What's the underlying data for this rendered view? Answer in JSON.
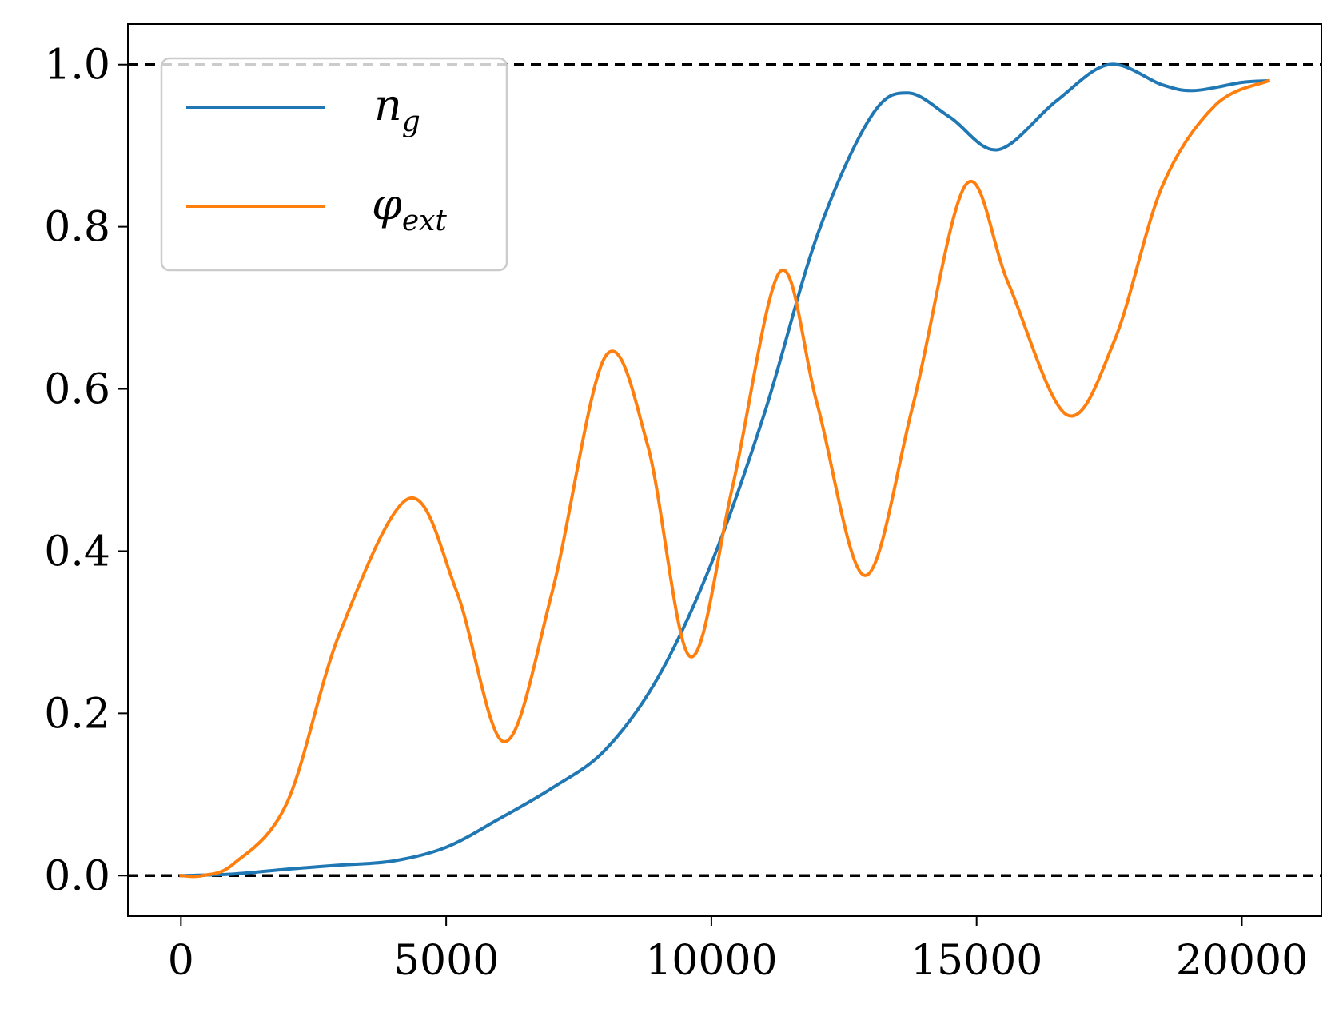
{
  "chart_data": {
    "type": "line",
    "title": "",
    "xlabel": "",
    "ylabel": "",
    "xlim": [
      -1000,
      21500
    ],
    "ylim": [
      -0.05,
      1.05
    ],
    "x_ticks": [
      0,
      5000,
      10000,
      15000,
      20000
    ],
    "x_tick_labels": [
      "0",
      "5000",
      "10000",
      "15000",
      "20000"
    ],
    "y_ticks": [
      0.0,
      0.2,
      0.4,
      0.6,
      0.8,
      1.0
    ],
    "y_tick_labels": [
      "0.0",
      "0.2",
      "0.4",
      "0.6",
      "0.8",
      "1.0"
    ],
    "grid": false,
    "legend_placement": "upper-left",
    "reference_lines": [
      {
        "y": 1.0,
        "style": "dashed",
        "color": "#000000"
      },
      {
        "y": 0.0,
        "style": "dashed",
        "color": "#000000"
      }
    ],
    "series": [
      {
        "name": "n_g",
        "legend": {
          "base": "n",
          "sub": "g"
        },
        "color": "#1f77b4",
        "x": [
          0,
          1000,
          2000,
          3000,
          4000,
          5000,
          6000,
          7000,
          8000,
          9000,
          10000,
          11000,
          12000,
          13000,
          13700,
          14500,
          15400,
          16500,
          17500,
          18500,
          19100,
          20000,
          20500
        ],
        "y": [
          0.0,
          0.002,
          0.008,
          0.013,
          0.018,
          0.035,
          0.07,
          0.108,
          0.155,
          0.245,
          0.385,
          0.57,
          0.79,
          0.935,
          0.965,
          0.935,
          0.895,
          0.955,
          1.0,
          0.975,
          0.968,
          0.978,
          0.98
        ]
      },
      {
        "name": "φ_ext",
        "legend": {
          "base": "φ",
          "sub": "ext"
        },
        "color": "#ff7f0e",
        "x": [
          0,
          400,
          1000,
          2000,
          3000,
          4300,
          5200,
          6100,
          7000,
          8000,
          8800,
          9600,
          10400,
          11300,
          12000,
          12900,
          13800,
          14800,
          15600,
          16700,
          17600,
          18500,
          19500,
          20500
        ],
        "y": [
          0.0,
          0.0,
          0.015,
          0.09,
          0.3,
          0.465,
          0.35,
          0.165,
          0.35,
          0.64,
          0.53,
          0.27,
          0.48,
          0.745,
          0.58,
          0.37,
          0.58,
          0.852,
          0.73,
          0.568,
          0.66,
          0.85,
          0.95,
          0.98
        ]
      }
    ]
  }
}
